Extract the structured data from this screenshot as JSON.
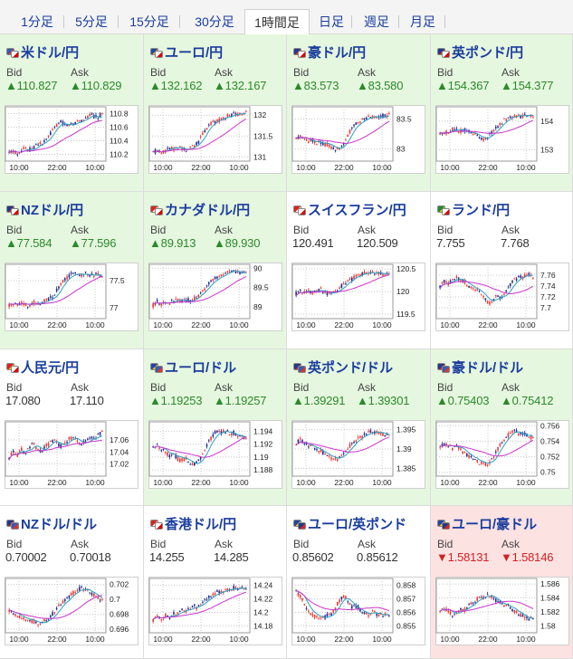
{
  "tabs": [
    {
      "label": "1分足",
      "active": false
    },
    {
      "label": "5分足",
      "active": false
    },
    {
      "label": "15分足",
      "active": false
    },
    {
      "label": "30分足",
      "active": false
    },
    {
      "label": "1時間足",
      "active": true
    },
    {
      "label": "日足",
      "active": false
    },
    {
      "label": "週足",
      "active": false
    },
    {
      "label": "月足",
      "active": false
    }
  ],
  "labels": {
    "bid": "Bid",
    "ask": "Ask"
  },
  "colors": {
    "up_text": "#2a8a2a",
    "down_text": "#d42020",
    "up_bg": "#e6f7df",
    "down_bg": "#fde2e2",
    "link": "#1a3d9e",
    "candle_up": "#e53935",
    "candle_down": "#1e2a8c",
    "ma_short": "#2aa0c0",
    "ma_long": "#cc33cc"
  },
  "pairs": [
    {
      "name": "米ドル/円",
      "flag": "flag-us-jp-icon",
      "trend": "up",
      "bid": "▲110.827",
      "ask": "▲110.829",
      "chart": {
        "type": "candlestick",
        "x_ticks": [
          "10:00",
          "22:00",
          "10:00"
        ],
        "y_ticks": [
          "110.8",
          "110.6",
          "110.4",
          "110.2"
        ],
        "y_range": [
          110.1,
          110.9
        ],
        "shape": [
          0.1,
          0.14,
          0.08,
          0.18,
          0.2,
          0.16,
          0.22,
          0.3,
          0.28,
          0.35,
          0.48,
          0.6,
          0.72,
          0.75,
          0.68,
          0.7,
          0.72,
          0.8,
          0.78,
          0.85,
          0.9,
          0.88,
          0.86,
          0.92
        ]
      }
    },
    {
      "name": "ユーロ/円",
      "flag": "flag-eu-jp-icon",
      "trend": "up",
      "bid": "▲132.162",
      "ask": "▲132.167",
      "chart": {
        "type": "candlestick",
        "x_ticks": [
          "10:00",
          "22:00",
          "10:00"
        ],
        "y_ticks": [
          "132",
          "131.5",
          "131"
        ],
        "y_range": [
          130.9,
          132.2
        ],
        "shape": [
          0.12,
          0.15,
          0.1,
          0.14,
          0.2,
          0.18,
          0.22,
          0.2,
          0.15,
          0.18,
          0.24,
          0.3,
          0.45,
          0.6,
          0.7,
          0.75,
          0.78,
          0.8,
          0.86,
          0.9,
          0.93,
          0.92,
          0.94,
          0.95
        ]
      }
    },
    {
      "name": "豪ドル/円",
      "flag": "flag-au-jp-icon",
      "trend": "up",
      "bid": "▲83.573",
      "ask": "▲83.580",
      "chart": {
        "type": "candlestick",
        "x_ticks": [
          "10:00",
          "22:00",
          "10:00"
        ],
        "y_ticks": [
          "83.5",
          "83"
        ],
        "y_range": [
          82.8,
          83.7
        ],
        "shape": [
          0.4,
          0.45,
          0.42,
          0.35,
          0.38,
          0.3,
          0.34,
          0.28,
          0.25,
          0.2,
          0.18,
          0.22,
          0.35,
          0.5,
          0.65,
          0.72,
          0.78,
          0.82,
          0.85,
          0.88,
          0.86,
          0.9,
          0.88,
          0.9
        ]
      }
    },
    {
      "name": "英ポンド/円",
      "flag": "flag-gb-jp-icon",
      "trend": "up",
      "bid": "▲154.367",
      "ask": "▲154.377",
      "chart": {
        "type": "candlestick",
        "x_ticks": [
          "10:00",
          "22:00",
          "10:00"
        ],
        "y_ticks": [
          "154",
          "153"
        ],
        "y_range": [
          152.6,
          154.5
        ],
        "shape": [
          0.5,
          0.55,
          0.52,
          0.6,
          0.58,
          0.55,
          0.6,
          0.55,
          0.5,
          0.48,
          0.42,
          0.38,
          0.45,
          0.55,
          0.65,
          0.72,
          0.8,
          0.82,
          0.85,
          0.88,
          0.86,
          0.9,
          0.88,
          0.89
        ]
      }
    },
    {
      "name": "NZドル/円",
      "flag": "flag-nz-jp-icon",
      "trend": "up",
      "bid": "▲77.584",
      "ask": "▲77.596",
      "chart": {
        "type": "candlestick",
        "x_ticks": [
          "10:00",
          "22:00",
          "10:00"
        ],
        "y_ticks": [
          "77.5",
          "77"
        ],
        "y_range": [
          76.8,
          77.8
        ],
        "shape": [
          0.2,
          0.25,
          0.22,
          0.28,
          0.24,
          0.2,
          0.26,
          0.22,
          0.28,
          0.3,
          0.35,
          0.42,
          0.55,
          0.68,
          0.78,
          0.85,
          0.88,
          0.9,
          0.85,
          0.88,
          0.86,
          0.84,
          0.86,
          0.85
        ]
      }
    },
    {
      "name": "カナダドル/円",
      "flag": "flag-ca-jp-icon",
      "trend": "up",
      "bid": "▲89.913",
      "ask": "▲89.930",
      "chart": {
        "type": "candlestick",
        "x_ticks": [
          "10:00",
          "22:00",
          "10:00"
        ],
        "y_ticks": [
          "90",
          "89.5",
          "89"
        ],
        "y_range": [
          88.7,
          90.1
        ],
        "shape": [
          0.2,
          0.28,
          0.22,
          0.3,
          0.25,
          0.32,
          0.3,
          0.28,
          0.34,
          0.3,
          0.35,
          0.4,
          0.48,
          0.6,
          0.7,
          0.78,
          0.82,
          0.86,
          0.88,
          0.9,
          0.92,
          0.9,
          0.92,
          0.93
        ]
      }
    },
    {
      "name": "スイスフラン/円",
      "flag": "flag-ch-jp-icon",
      "trend": "flat",
      "bid": "120.491",
      "ask": "120.509",
      "chart": {
        "type": "candlestick",
        "x_ticks": [
          "10:00",
          "22:00",
          "10:00"
        ],
        "y_ticks": [
          "120.5",
          "120",
          "119.5"
        ],
        "y_range": [
          119.4,
          120.6
        ],
        "shape": [
          0.45,
          0.5,
          0.48,
          0.52,
          0.46,
          0.5,
          0.55,
          0.48,
          0.45,
          0.5,
          0.52,
          0.6,
          0.68,
          0.72,
          0.78,
          0.82,
          0.86,
          0.88,
          0.9,
          0.88,
          0.89,
          0.87,
          0.88,
          0.89
        ]
      }
    },
    {
      "name": "ランド/円",
      "flag": "flag-za-jp-icon",
      "trend": "flat",
      "bid": "7.755",
      "ask": "7.768",
      "chart": {
        "type": "candlestick",
        "x_ticks": [
          "10:00",
          "22:00",
          "10:00"
        ],
        "y_ticks": [
          "7.76",
          "7.74",
          "7.72",
          "7.7"
        ],
        "y_range": [
          7.68,
          7.78
        ],
        "shape": [
          0.6,
          0.72,
          0.65,
          0.78,
          0.8,
          0.75,
          0.7,
          0.62,
          0.58,
          0.55,
          0.45,
          0.35,
          0.25,
          0.3,
          0.4,
          0.35,
          0.5,
          0.6,
          0.72,
          0.78,
          0.8,
          0.82,
          0.85,
          0.8
        ]
      }
    },
    {
      "name": "人民元/円",
      "flag": "flag-cn-jp-icon",
      "trend": "flat",
      "bid": "17.080",
      "ask": "17.110",
      "chart": {
        "type": "candlestick",
        "x_ticks": [
          "10:00",
          "22:00",
          "10:00"
        ],
        "y_ticks": [
          "17.06",
          "17.04",
          "17.02"
        ],
        "y_range": [
          17.0,
          17.09
        ],
        "shape": [
          0.3,
          0.45,
          0.35,
          0.5,
          0.4,
          0.55,
          0.6,
          0.5,
          0.45,
          0.55,
          0.62,
          0.7,
          0.6,
          0.55,
          0.62,
          0.75,
          0.7,
          0.65,
          0.6,
          0.7,
          0.75,
          0.72,
          0.8,
          0.88
        ]
      }
    },
    {
      "name": "ユーロ/ドル",
      "flag": "flag-eu-us-icon",
      "trend": "up",
      "bid": "▲1.19253",
      "ask": "▲1.19257",
      "chart": {
        "type": "candlestick",
        "x_ticks": [
          "10:00",
          "22:00",
          "10:00"
        ],
        "y_ticks": [
          "1.194",
          "1.192",
          "1.19",
          "1.188"
        ],
        "y_range": [
          1.187,
          1.1955
        ],
        "shape": [
          0.55,
          0.6,
          0.5,
          0.45,
          0.35,
          0.4,
          0.3,
          0.25,
          0.3,
          0.2,
          0.15,
          0.25,
          0.35,
          0.5,
          0.7,
          0.82,
          0.88,
          0.85,
          0.9,
          0.82,
          0.85,
          0.8,
          0.75,
          0.72
        ]
      }
    },
    {
      "name": "英ポンド/ドル",
      "flag": "flag-gb-us-icon",
      "trend": "up",
      "bid": "▲1.39291",
      "ask": "▲1.39301",
      "chart": {
        "type": "candlestick",
        "x_ticks": [
          "10:00",
          "22:00",
          "10:00"
        ],
        "y_ticks": [
          "1.395",
          "1.39",
          "1.385"
        ],
        "y_range": [
          1.383,
          1.397
        ],
        "shape": [
          0.6,
          0.7,
          0.65,
          0.58,
          0.55,
          0.5,
          0.45,
          0.42,
          0.35,
          0.3,
          0.25,
          0.35,
          0.45,
          0.55,
          0.62,
          0.7,
          0.75,
          0.8,
          0.85,
          0.88,
          0.85,
          0.82,
          0.8,
          0.78
        ]
      }
    },
    {
      "name": "豪ドル/ドル",
      "flag": "flag-au-us-icon",
      "trend": "up",
      "bid": "▲0.75403",
      "ask": "▲0.75412",
      "chart": {
        "type": "candlestick",
        "x_ticks": [
          "10:00",
          "22:00",
          "10:00"
        ],
        "y_ticks": [
          "0.756",
          "0.754",
          "0.752",
          "0.75"
        ],
        "y_range": [
          0.7495,
          0.7565
        ],
        "shape": [
          0.55,
          0.62,
          0.58,
          0.5,
          0.55,
          0.48,
          0.4,
          0.35,
          0.3,
          0.25,
          0.2,
          0.15,
          0.2,
          0.3,
          0.45,
          0.6,
          0.72,
          0.8,
          0.88,
          0.85,
          0.8,
          0.82,
          0.78,
          0.72
        ]
      }
    },
    {
      "name": "NZドル/ドル",
      "flag": "flag-nz-us-icon",
      "trend": "flat",
      "bid": "0.70002",
      "ask": "0.70018",
      "chart": {
        "type": "candlestick",
        "x_ticks": [
          "10:00",
          "22:00",
          "10:00"
        ],
        "y_ticks": [
          "0.702",
          "0.7",
          "0.698",
          "0.696"
        ],
        "y_range": [
          0.6955,
          0.7028
        ],
        "shape": [
          0.4,
          0.35,
          0.3,
          0.25,
          0.22,
          0.18,
          0.15,
          0.12,
          0.15,
          0.2,
          0.25,
          0.35,
          0.45,
          0.55,
          0.62,
          0.7,
          0.78,
          0.85,
          0.88,
          0.82,
          0.78,
          0.72,
          0.68,
          0.6
        ]
      }
    },
    {
      "name": "香港ドル/円",
      "flag": "flag-hk-jp-icon",
      "trend": "flat",
      "bid": "14.255",
      "ask": "14.285",
      "chart": {
        "type": "candlestick",
        "x_ticks": [
          "10:00",
          "22:00",
          "10:00"
        ],
        "y_ticks": [
          "14.24",
          "14.22",
          "14.2",
          "14.18"
        ],
        "y_range": [
          14.17,
          14.25
        ],
        "shape": [
          0.2,
          0.28,
          0.22,
          0.3,
          0.25,
          0.35,
          0.3,
          0.4,
          0.35,
          0.42,
          0.5,
          0.45,
          0.55,
          0.62,
          0.7,
          0.75,
          0.8,
          0.78,
          0.85,
          0.82,
          0.88,
          0.84,
          0.86,
          0.9
        ]
      }
    },
    {
      "name": "ユーロ/英ポンド",
      "flag": "flag-eu-gb-icon",
      "trend": "flat",
      "bid": "0.85602",
      "ask": "0.85612",
      "chart": {
        "type": "candlestick",
        "x_ticks": [
          "10:00",
          "22:00",
          "10:00"
        ],
        "y_ticks": [
          "0.858",
          "0.857",
          "0.856",
          "0.855"
        ],
        "y_range": [
          0.8545,
          0.8585
        ],
        "shape": [
          0.8,
          0.7,
          0.55,
          0.4,
          0.3,
          0.25,
          0.2,
          0.25,
          0.3,
          0.35,
          0.5,
          0.65,
          0.7,
          0.55,
          0.45,
          0.5,
          0.4,
          0.35,
          0.3,
          0.38,
          0.32,
          0.28,
          0.3,
          0.33
        ]
      }
    },
    {
      "name": "ユーロ/豪ドル",
      "flag": "flag-eu-au-icon",
      "trend": "down",
      "bid": "▼1.58131",
      "ask": "▼1.58146",
      "chart": {
        "type": "candlestick",
        "x_ticks": [
          "10:00",
          "22:00",
          "10:00"
        ],
        "y_ticks": [
          "1.586",
          "1.584",
          "1.582",
          "1.58"
        ],
        "y_range": [
          1.579,
          1.5868
        ],
        "shape": [
          0.35,
          0.45,
          0.4,
          0.3,
          0.35,
          0.42,
          0.38,
          0.5,
          0.55,
          0.62,
          0.7,
          0.65,
          0.72,
          0.68,
          0.6,
          0.55,
          0.48,
          0.5,
          0.4,
          0.35,
          0.3,
          0.25,
          0.22,
          0.25
        ]
      }
    }
  ]
}
